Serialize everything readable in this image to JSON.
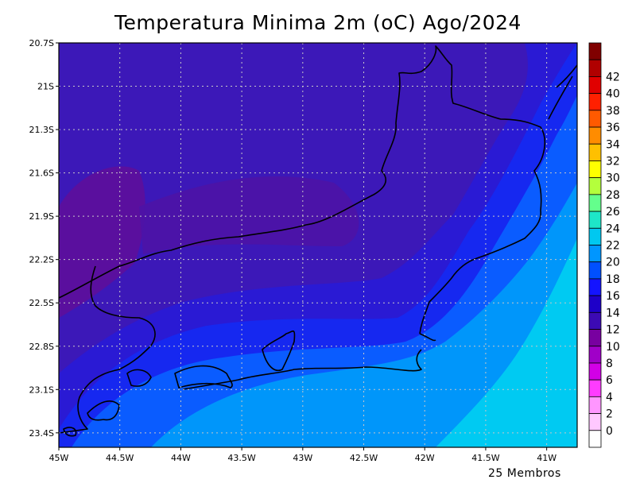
{
  "title": "Temperatura Minima 2m (oC) Ago/2024",
  "footer": "25 Membros",
  "map": {
    "lon_range": [
      -45.0,
      -40.75
    ],
    "lat_range": [
      -23.5,
      -20.7
    ],
    "lon_ticks": [
      {
        "value": -45.0,
        "label": "45W"
      },
      {
        "value": -44.5,
        "label": "44.5W"
      },
      {
        "value": -44.0,
        "label": "44W"
      },
      {
        "value": -43.5,
        "label": "43.5W"
      },
      {
        "value": -43.0,
        "label": "43W"
      },
      {
        "value": -42.5,
        "label": "42.5W"
      },
      {
        "value": -42.0,
        "label": "42W"
      },
      {
        "value": -41.5,
        "label": "41.5W"
      },
      {
        "value": -41.0,
        "label": "41W"
      }
    ],
    "lat_ticks": [
      {
        "value": -20.7,
        "label": "20.7S"
      },
      {
        "value": -21.0,
        "label": "21S"
      },
      {
        "value": -21.3,
        "label": "21.3S"
      },
      {
        "value": -21.6,
        "label": "21.6S"
      },
      {
        "value": -21.9,
        "label": "21.9S"
      },
      {
        "value": -22.2,
        "label": "22.2S"
      },
      {
        "value": -22.5,
        "label": "22.5S"
      },
      {
        "value": -22.8,
        "label": "22.8S"
      },
      {
        "value": -23.1,
        "label": "23.1S"
      },
      {
        "value": -23.4,
        "label": "23.4S"
      }
    ],
    "grid": "dotted"
  },
  "colorbar": {
    "levels": [
      {
        "label": "",
        "color": "#800000"
      },
      {
        "label": "42",
        "color": "#b00000"
      },
      {
        "label": "40",
        "color": "#e00000"
      },
      {
        "label": "38",
        "color": "#ff2000"
      },
      {
        "label": "36",
        "color": "#ff5a00"
      },
      {
        "label": "34",
        "color": "#ff8c00"
      },
      {
        "label": "32",
        "color": "#ffc000"
      },
      {
        "label": "30",
        "color": "#ffff00"
      },
      {
        "label": "28",
        "color": "#b4ff3c"
      },
      {
        "label": "26",
        "color": "#64ff8c"
      },
      {
        "label": "24",
        "color": "#1ee6c8"
      },
      {
        "label": "22",
        "color": "#00c8f0"
      },
      {
        "label": "20",
        "color": "#0096ff"
      },
      {
        "label": "18",
        "color": "#0050ff"
      },
      {
        "label": "16",
        "color": "#1414ff"
      },
      {
        "label": "14",
        "color": "#1e00c8"
      },
      {
        "label": "12",
        "color": "#3c0ab4"
      },
      {
        "label": "10",
        "color": "#7800a0"
      },
      {
        "label": "8",
        "color": "#a000c8"
      },
      {
        "label": "6",
        "color": "#d200e6"
      },
      {
        "label": "4",
        "color": "#ff3cff"
      },
      {
        "label": "2",
        "color": "#ff96ff"
      },
      {
        "label": "0",
        "color": "#ffc8ff"
      },
      {
        "label": "",
        "color": "#ffffff"
      }
    ]
  }
}
